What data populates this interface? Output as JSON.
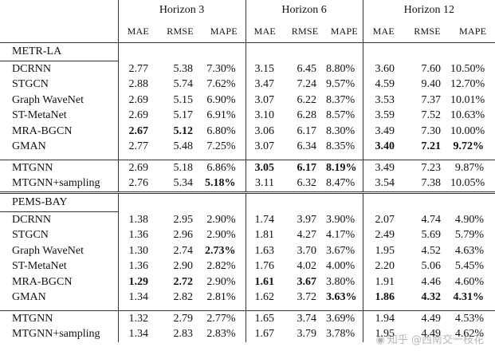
{
  "header": {
    "horizons": [
      "Horizon 3",
      "Horizon 6",
      "Horizon 12"
    ],
    "metrics": [
      "MAE",
      "RMSE",
      "MAPE"
    ]
  },
  "sections": [
    {
      "name": "METR-LA",
      "groups": [
        [
          {
            "model": "DCRNN",
            "v": [
              "2.77",
              "5.38",
              "7.30%",
              "3.15",
              "6.45",
              "8.80%",
              "3.60",
              "7.60",
              "10.50%"
            ],
            "bold": []
          },
          {
            "model": "STGCN",
            "v": [
              "2.88",
              "5.74",
              "7.62%",
              "3.47",
              "7.24",
              "9.57%",
              "4.59",
              "9.40",
              "12.70%"
            ],
            "bold": []
          },
          {
            "model": "Graph WaveNet",
            "v": [
              "2.69",
              "5.15",
              "6.90%",
              "3.07",
              "6.22",
              "8.37%",
              "3.53",
              "7.37",
              "10.01%"
            ],
            "bold": []
          },
          {
            "model": "ST-MetaNet",
            "v": [
              "2.69",
              "5.17",
              "6.91%",
              "3.10",
              "6.28",
              "8.57%",
              "3.59",
              "7.52",
              "10.63%"
            ],
            "bold": []
          },
          {
            "model": "MRA-BGCN",
            "v": [
              "2.67",
              "5.12",
              "6.80%",
              "3.06",
              "6.17",
              "8.30%",
              "3.49",
              "7.30",
              "10.00%"
            ],
            "bold": [
              0,
              1
            ]
          },
          {
            "model": "GMAN",
            "v": [
              "2.77",
              "5.48",
              "7.25%",
              "3.07",
              "6.34",
              "8.35%",
              "3.40",
              "7.21",
              "9.72%"
            ],
            "bold": [
              6,
              7,
              8
            ]
          }
        ],
        [
          {
            "model": "MTGNN",
            "v": [
              "2.69",
              "5.18",
              "6.86%",
              "3.05",
              "6.17",
              "8.19%",
              "3.49",
              "7.23",
              "9.87%"
            ],
            "bold": [
              3,
              4,
              5
            ]
          },
          {
            "model": "MTGNN+sampling",
            "v": [
              "2.76",
              "5.34",
              "5.18%",
              "3.11",
              "6.32",
              "8.47%",
              "3.54",
              "7.38",
              "10.05%"
            ],
            "bold": [
              2
            ]
          }
        ]
      ]
    },
    {
      "name": "PEMS-BAY",
      "groups": [
        [
          {
            "model": "DCRNN",
            "v": [
              "1.38",
              "2.95",
              "2.90%",
              "1.74",
              "3.97",
              "3.90%",
              "2.07",
              "4.74",
              "4.90%"
            ],
            "bold": []
          },
          {
            "model": "STGCN",
            "v": [
              "1.36",
              "2.96",
              "2.90%",
              "1.81",
              "4.27",
              "4.17%",
              "2.49",
              "5.69",
              "5.79%"
            ],
            "bold": []
          },
          {
            "model": "Graph WaveNet",
            "v": [
              "1.30",
              "2.74",
              "2.73%",
              "1.63",
              "3.70",
              "3.67%",
              "1.95",
              "4.52",
              "4.63%"
            ],
            "bold": [
              2
            ]
          },
          {
            "model": "ST-MetaNet",
            "v": [
              "1.36",
              "2.90",
              "2.82%",
              "1.76",
              "4.02",
              "4.00%",
              "2.20",
              "5.06",
              "5.45%"
            ],
            "bold": []
          },
          {
            "model": "MRA-BGCN",
            "v": [
              "1.29",
              "2.72",
              "2.90%",
              "1.61",
              "3.67",
              "3.80%",
              "1.91",
              "4.46",
              "4.60%"
            ],
            "bold": [
              0,
              1,
              3,
              4
            ]
          },
          {
            "model": "GMAN",
            "v": [
              "1.34",
              "2.82",
              "2.81%",
              "1.62",
              "3.72",
              "3.63%",
              "1.86",
              "4.32",
              "4.31%"
            ],
            "bold": [
              5,
              6,
              7,
              8
            ]
          }
        ],
        [
          {
            "model": "MTGNN",
            "v": [
              "1.32",
              "2.79",
              "2.77%",
              "1.65",
              "3.74",
              "3.69%",
              "1.94",
              "4.49",
              "4.53%"
            ],
            "bold": []
          },
          {
            "model": "MTGNN+sampling",
            "v": [
              "1.34",
              "2.83",
              "2.83%",
              "1.67",
              "3.79",
              "3.78%",
              "1.95",
              "4.49",
              "4.62%"
            ],
            "bold": []
          }
        ]
      ]
    }
  ],
  "watermark": "知乎 @西南交一枝花"
}
